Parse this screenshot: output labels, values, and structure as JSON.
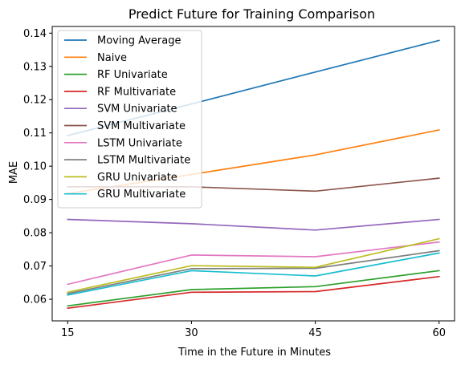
{
  "chart_data": {
    "type": "line",
    "title": "Predict Future for Training Comparison",
    "xlabel": "Time in the Future in Minutes",
    "ylabel": "MAE",
    "x": [
      15,
      30,
      45,
      60
    ],
    "xticks": [
      "15",
      "30",
      "45",
      "60"
    ],
    "yticks": [
      "0.06",
      "0.07",
      "0.08",
      "0.09",
      "0.10",
      "0.11",
      "0.12",
      "0.13",
      "0.14"
    ],
    "xlim": [
      13.125,
      61.875
    ],
    "ylim": [
      0.0535,
      0.142
    ],
    "grid": false,
    "legend_position": "top-left",
    "series": [
      {
        "name": "Moving Average",
        "color": "#1f77b4",
        "values": [
          0.1092,
          0.1187,
          0.1283,
          0.1378
        ]
      },
      {
        "name": "Naive",
        "color": "#ff7f0e",
        "values": [
          0.0918,
          0.0975,
          0.1034,
          0.1109
        ]
      },
      {
        "name": "RF Univariate",
        "color": "#2ca02c",
        "values": [
          0.058,
          0.0629,
          0.0638,
          0.0686
        ]
      },
      {
        "name": "RF Multivariate",
        "color": "#d62728",
        "values": [
          0.0573,
          0.0621,
          0.0623,
          0.0668
        ]
      },
      {
        "name": "SVM Univariate",
        "color": "#9467bd",
        "values": [
          0.084,
          0.0827,
          0.0808,
          0.084
        ]
      },
      {
        "name": "SVM Multivariate",
        "color": "#8c564b",
        "values": [
          0.0938,
          0.0938,
          0.0925,
          0.0964
        ]
      },
      {
        "name": "LSTM Univariate",
        "color": "#e377c2",
        "values": [
          0.0645,
          0.0733,
          0.0728,
          0.0772
        ]
      },
      {
        "name": "LSTM Multivariate",
        "color": "#7f7f7f",
        "values": [
          0.0617,
          0.0692,
          0.0693,
          0.0746
        ]
      },
      {
        "name": "GRU Univariate",
        "color": "#bcbd22",
        "values": [
          0.0621,
          0.0701,
          0.0696,
          0.0782
        ]
      },
      {
        "name": "GRU Multivariate",
        "color": "#17becf",
        "values": [
          0.0613,
          0.0686,
          0.067,
          0.0739
        ]
      }
    ]
  }
}
